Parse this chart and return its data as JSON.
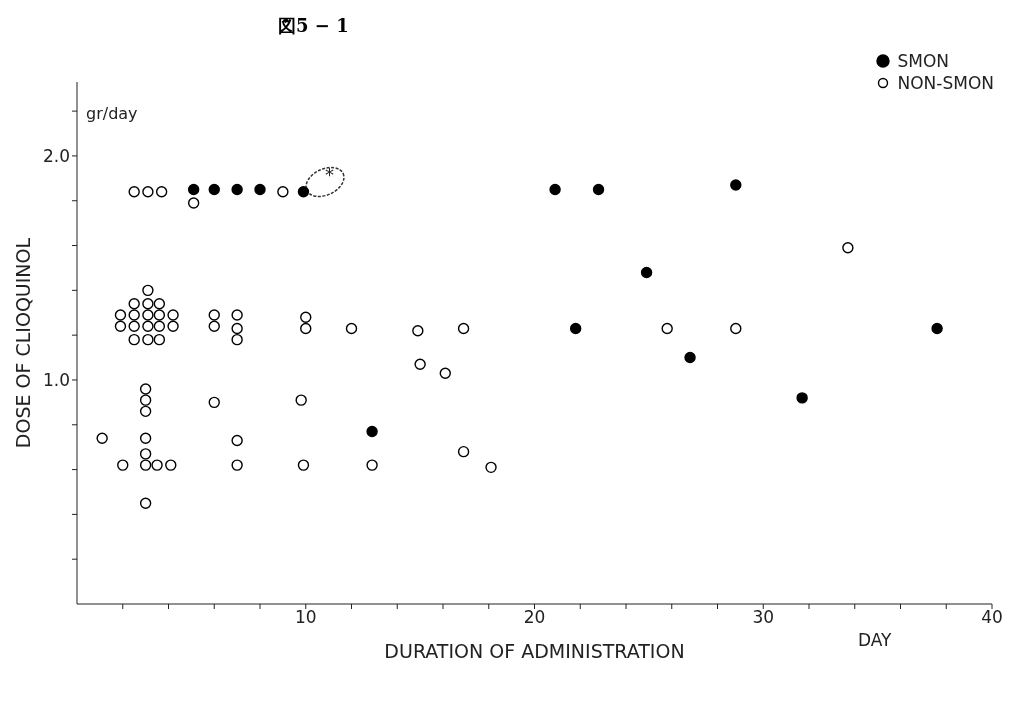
{
  "chart_data": {
    "type": "scatter",
    "title": "図5 − 1",
    "xlabel": "DURATION OF ADMINISTRATION",
    "ylabel": "DOSE OF CLIOQUINOL",
    "annotations": [
      "gr/day",
      "DAY",
      "*"
    ],
    "xlim": [
      0,
      40
    ],
    "ylim": [
      0,
      2.33
    ],
    "xticks": [
      {
        "value": 2,
        "label": null
      },
      {
        "value": 4,
        "label": null
      },
      {
        "value": 6,
        "label": null
      },
      {
        "value": 8,
        "label": null
      },
      10,
      {
        "value": 12,
        "label": null
      },
      {
        "value": 14,
        "label": null
      },
      {
        "value": 16,
        "label": null
      },
      {
        "value": 18,
        "label": null
      },
      20,
      {
        "value": 22,
        "label": null
      },
      {
        "value": 24,
        "label": null
      },
      {
        "value": 26,
        "label": null
      },
      {
        "value": 28,
        "label": null
      },
      30,
      {
        "value": 32,
        "label": null
      },
      {
        "value": 34,
        "label": null
      },
      {
        "value": 36,
        "label": null
      },
      {
        "value": 38,
        "label": null
      },
      40
    ],
    "yticks": [
      {
        "value": 0.2,
        "label": null
      },
      {
        "value": 0.4,
        "label": null
      },
      {
        "value": 0.6,
        "label": null
      },
      {
        "value": 0.8,
        "label": null
      },
      {
        "value": 1.0,
        "label": "1.0"
      },
      {
        "value": 1.2,
        "label": null
      },
      {
        "value": 1.4,
        "label": null
      },
      {
        "value": 1.6,
        "label": null
      },
      {
        "value": 1.8,
        "label": null
      },
      {
        "value": 2.0,
        "label": "2.0"
      },
      {
        "value": 2.2,
        "label": null
      }
    ],
    "marker": "circle",
    "legend": "top right",
    "grid": false,
    "series": [
      {
        "name": "SMON",
        "color": "#000000",
        "x": [
          5.1,
          6.0,
          7.0,
          8.0,
          9.9,
          12.9,
          20.9,
          21.8,
          22.8,
          24.9,
          26.8,
          28.8,
          31.7,
          37.6
        ],
        "values": [
          1.85,
          1.85,
          1.85,
          1.85,
          1.84,
          0.77,
          1.85,
          1.23,
          1.85,
          1.48,
          1.1,
          1.87,
          0.92,
          1.23
        ]
      },
      {
        "name": "NON-SMON",
        "color": "#ffffff",
        "x": [
          2.5,
          3.1,
          3.7,
          5.1,
          9.0,
          3.1,
          2.5,
          3.1,
          3.6,
          1.9,
          2.5,
          3.1,
          3.6,
          4.2,
          1.9,
          2.5,
          3.1,
          3.6,
          4.2,
          2.5,
          3.1,
          3.6,
          6.0,
          6.0,
          7.0,
          7.0,
          7.0,
          10.0,
          10.0,
          12.0,
          14.9,
          16.9,
          3.0,
          3.0,
          3.0,
          6.0,
          9.8,
          1.1,
          3.0,
          7.0,
          3.0,
          2.0,
          3.0,
          3.5,
          4.1,
          7.0,
          9.9,
          3.0,
          15.0,
          16.1,
          12.9,
          16.9,
          18.1,
          33.7,
          25.8,
          28.8
        ],
        "values": [
          1.84,
          1.84,
          1.84,
          1.79,
          1.84,
          1.4,
          1.34,
          1.34,
          1.34,
          1.29,
          1.29,
          1.29,
          1.29,
          1.29,
          1.24,
          1.24,
          1.24,
          1.24,
          1.24,
          1.18,
          1.18,
          1.18,
          1.29,
          1.24,
          1.29,
          1.23,
          1.18,
          1.28,
          1.23,
          1.23,
          1.22,
          1.23,
          0.96,
          0.91,
          0.86,
          0.9,
          0.91,
          0.74,
          0.74,
          0.73,
          0.67,
          0.62,
          0.62,
          0.62,
          0.62,
          0.62,
          0.62,
          0.45,
          1.07,
          1.03,
          0.62,
          0.68,
          0.61,
          1.59,
          1.23,
          1.23
        ]
      }
    ]
  }
}
